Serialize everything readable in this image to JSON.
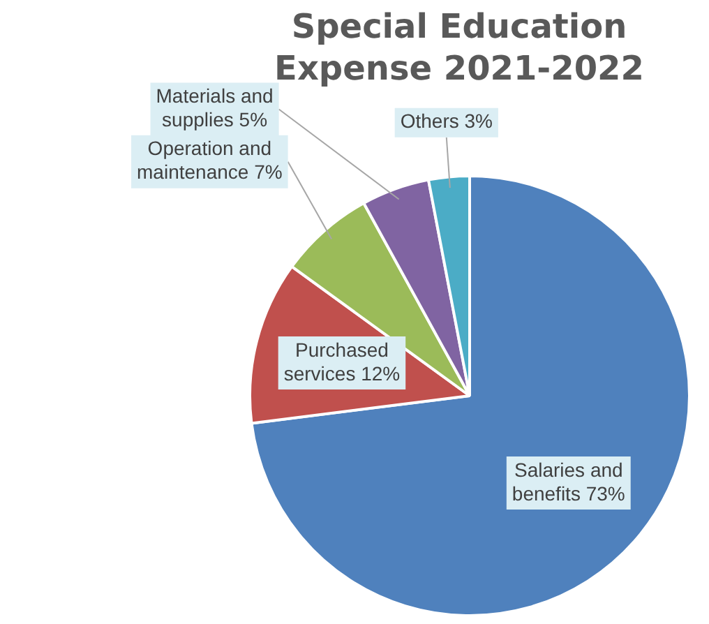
{
  "chart_data": {
    "type": "pie",
    "title": "Special Education Expense 2021-2022",
    "categories": [
      "Salaries and benefits",
      "Purchased services",
      "Operation and maintenance",
      "Materials and supplies",
      "Others"
    ],
    "values": [
      73,
      12,
      7,
      5,
      3
    ],
    "value_labels": [
      "73%",
      "12%",
      "7%",
      "5%",
      "3%"
    ],
    "colors": [
      "#4f81bd",
      "#c0504d",
      "#9bbb59",
      "#8064a2",
      "#4bacc6"
    ],
    "legend": false
  }
}
